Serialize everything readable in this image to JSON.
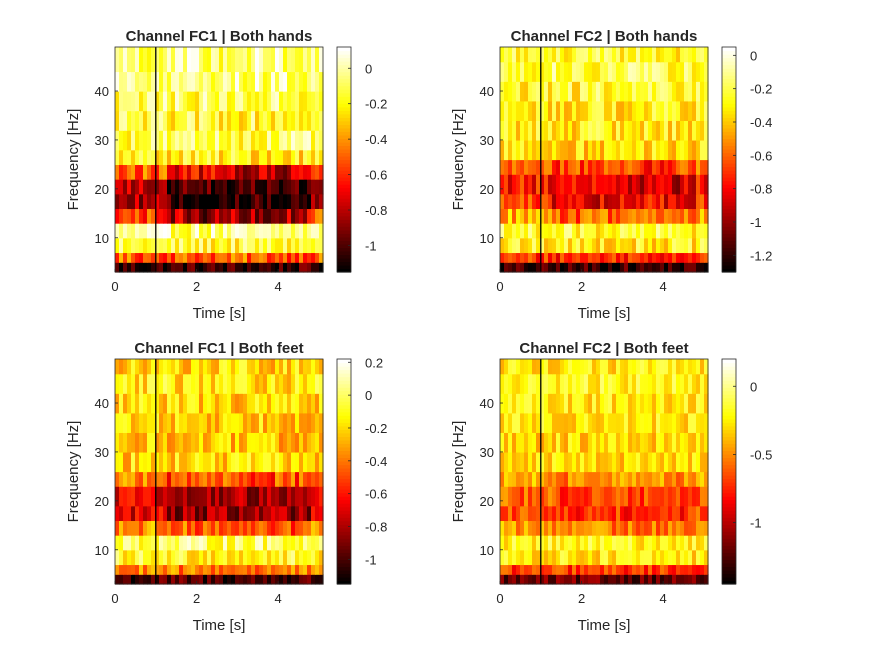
{
  "chart_data": [
    {
      "type": "heatmap",
      "title": "Channel FC1 | Both hands",
      "xlabel": "Time [s]",
      "ylabel": "Frequency [Hz]",
      "xlim": [
        0,
        5.1
      ],
      "ylim": [
        3,
        49
      ],
      "xticks": [
        0,
        2,
        4
      ],
      "yticks": [
        10,
        20,
        30,
        40
      ],
      "clim": [
        -1.15,
        0.12
      ],
      "cticks": [
        0,
        -0.2,
        -0.4,
        -0.6,
        -0.8,
        -1
      ],
      "colormap": "hot",
      "event_line_x": 1,
      "bands": [
        {
          "f": [
            3,
            5
          ],
          "v": -1.05
        },
        {
          "f": [
            5,
            7
          ],
          "v": -0.5
        },
        {
          "f": [
            7,
            10
          ],
          "v": -0.15
        },
        {
          "f": [
            10,
            13
          ],
          "v": -0.05
        },
        {
          "f": [
            13,
            16
          ],
          "v": -0.55
        },
        {
          "f": [
            16,
            19
          ],
          "v": -0.85
        },
        {
          "f": [
            19,
            22
          ],
          "v": -0.8
        },
        {
          "f": [
            22,
            25
          ],
          "v": -0.5
        },
        {
          "f": [
            25,
            28
          ],
          "v": -0.2
        },
        {
          "f": [
            28,
            32
          ],
          "v": -0.1
        },
        {
          "f": [
            32,
            36
          ],
          "v": -0.15
        },
        {
          "f": [
            36,
            40
          ],
          "v": -0.1
        },
        {
          "f": [
            40,
            44
          ],
          "v": -0.05
        },
        {
          "f": [
            44,
            49
          ],
          "v": -0.05
        }
      ],
      "erd_window": [
        1.2,
        4.8
      ],
      "erd_depth": 0.3
    },
    {
      "type": "heatmap",
      "title": "Channel FC2 | Both hands",
      "xlabel": "Time [s]",
      "ylabel": "Frequency [Hz]",
      "xlim": [
        0,
        5.1
      ],
      "ylim": [
        3,
        49
      ],
      "xticks": [
        0,
        2,
        4
      ],
      "yticks": [
        10,
        20,
        30,
        40
      ],
      "clim": [
        -1.3,
        0.05
      ],
      "cticks": [
        0,
        -0.2,
        -0.4,
        -0.6,
        -0.8,
        -1,
        -1.2
      ],
      "colormap": "hot",
      "event_line_x": 1,
      "bands": [
        {
          "f": [
            3,
            5
          ],
          "v": -1.2
        },
        {
          "f": [
            5,
            7
          ],
          "v": -0.7
        },
        {
          "f": [
            7,
            10
          ],
          "v": -0.3
        },
        {
          "f": [
            10,
            13
          ],
          "v": -0.25
        },
        {
          "f": [
            13,
            16
          ],
          "v": -0.45
        },
        {
          "f": [
            16,
            19
          ],
          "v": -0.7
        },
        {
          "f": [
            19,
            23
          ],
          "v": -0.75
        },
        {
          "f": [
            23,
            26
          ],
          "v": -0.55
        },
        {
          "f": [
            26,
            30
          ],
          "v": -0.35
        },
        {
          "f": [
            30,
            34
          ],
          "v": -0.3
        },
        {
          "f": [
            34,
            38
          ],
          "v": -0.3
        },
        {
          "f": [
            38,
            42
          ],
          "v": -0.25
        },
        {
          "f": [
            42,
            46
          ],
          "v": -0.2
        },
        {
          "f": [
            46,
            49
          ],
          "v": -0.25
        }
      ],
      "erd_window": [
        1.2,
        4.8
      ],
      "erd_depth": 0.15
    },
    {
      "type": "heatmap",
      "title": "Channel FC1 | Both feet",
      "xlabel": "Time [s]",
      "ylabel": "Frequency [Hz]",
      "xlim": [
        0,
        5.1
      ],
      "ylim": [
        3,
        49
      ],
      "xticks": [
        0,
        2,
        4
      ],
      "yticks": [
        10,
        20,
        30,
        40
      ],
      "clim": [
        -1.15,
        0.22
      ],
      "cticks": [
        0.2,
        0,
        -0.2,
        -0.4,
        -0.6,
        -0.8,
        -1
      ],
      "colormap": "hot",
      "event_line_x": 1,
      "bands": [
        {
          "f": [
            3,
            5
          ],
          "v": -1.0
        },
        {
          "f": [
            5,
            7
          ],
          "v": -0.4
        },
        {
          "f": [
            7,
            10
          ],
          "v": -0.1
        },
        {
          "f": [
            10,
            13
          ],
          "v": 0.0
        },
        {
          "f": [
            13,
            16
          ],
          "v": -0.35
        },
        {
          "f": [
            16,
            19
          ],
          "v": -0.7
        },
        {
          "f": [
            19,
            23
          ],
          "v": -0.7
        },
        {
          "f": [
            23,
            26
          ],
          "v": -0.35
        },
        {
          "f": [
            26,
            30
          ],
          "v": -0.2
        },
        {
          "f": [
            30,
            34
          ],
          "v": -0.25
        },
        {
          "f": [
            34,
            38
          ],
          "v": -0.2
        },
        {
          "f": [
            38,
            42
          ],
          "v": -0.2
        },
        {
          "f": [
            42,
            46
          ],
          "v": -0.15
        },
        {
          "f": [
            46,
            49
          ],
          "v": -0.2
        }
      ],
      "erd_window": [
        1.2,
        4.8
      ],
      "erd_depth": 0.15
    },
    {
      "type": "heatmap",
      "title": "Channel FC2 | Both feet",
      "xlabel": "Time [s]",
      "ylabel": "Frequency [Hz]",
      "xlim": [
        0,
        5.1
      ],
      "ylim": [
        3,
        49
      ],
      "xticks": [
        0,
        2,
        4
      ],
      "yticks": [
        10,
        20,
        30,
        40
      ],
      "clim": [
        -1.45,
        0.2
      ],
      "cticks": [
        0,
        -0.5,
        -1
      ],
      "colormap": "hot",
      "event_line_x": 1,
      "bands": [
        {
          "f": [
            3,
            5
          ],
          "v": -1.2
        },
        {
          "f": [
            5,
            7
          ],
          "v": -0.7
        },
        {
          "f": [
            7,
            10
          ],
          "v": -0.25
        },
        {
          "f": [
            10,
            13
          ],
          "v": -0.2
        },
        {
          "f": [
            13,
            16
          ],
          "v": -0.45
        },
        {
          "f": [
            16,
            19
          ],
          "v": -0.65
        },
        {
          "f": [
            19,
            23
          ],
          "v": -0.6
        },
        {
          "f": [
            23,
            26
          ],
          "v": -0.4
        },
        {
          "f": [
            26,
            30
          ],
          "v": -0.3
        },
        {
          "f": [
            30,
            34
          ],
          "v": -0.3
        },
        {
          "f": [
            34,
            38
          ],
          "v": -0.25
        },
        {
          "f": [
            38,
            42
          ],
          "v": -0.25
        },
        {
          "f": [
            42,
            46
          ],
          "v": -0.2
        },
        {
          "f": [
            46,
            49
          ],
          "v": -0.25
        }
      ],
      "erd_window": [
        1.2,
        4.8
      ],
      "erd_depth": 0.1
    }
  ]
}
